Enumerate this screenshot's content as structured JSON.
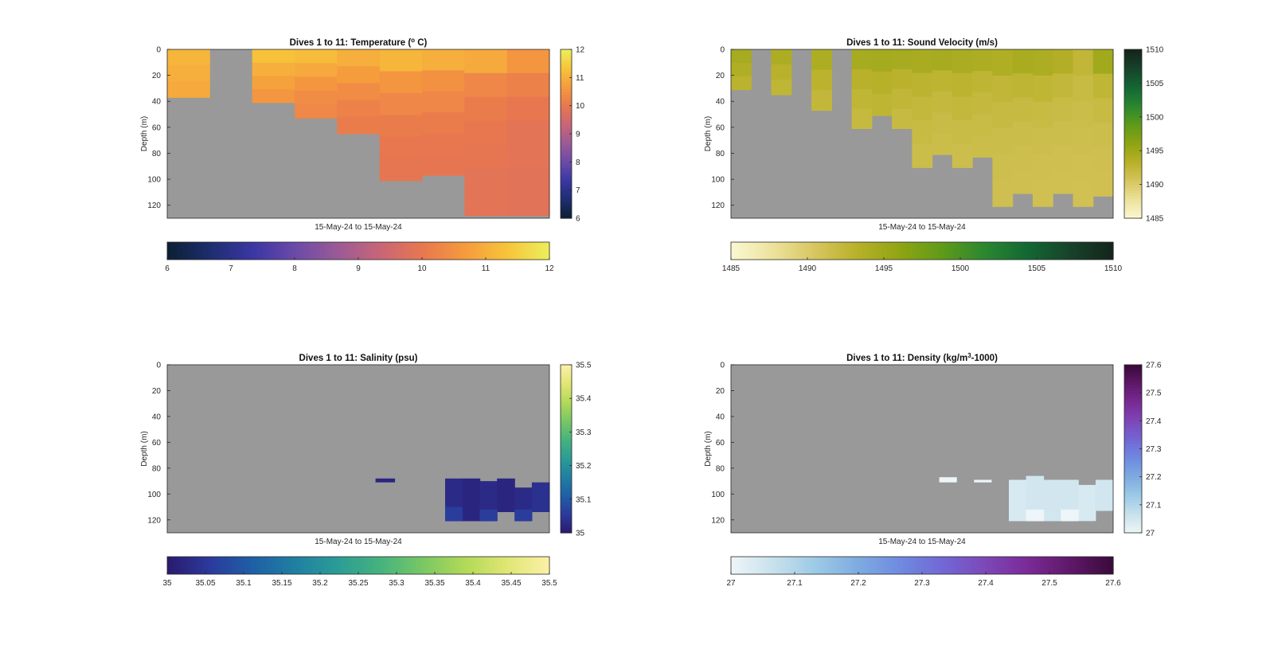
{
  "colors": {
    "background": "#ffffff",
    "no_data": "#999999",
    "axis": "#262626"
  },
  "chart_data": [
    {
      "type": "heatmap",
      "title": "Dives 1 to 11: Temperature (",
      "title_sup": "o",
      "title_end": " C)",
      "xlabel": "15-May-24 to 15-May-24",
      "ylabel": "Depth (m)",
      "ylim": [
        0,
        130
      ],
      "yticks": [
        "0",
        "20",
        "40",
        "60",
        "80",
        "100",
        "120"
      ],
      "colorbar_range": [
        6,
        12
      ],
      "colorbar_ticks": [
        "6",
        "7",
        "8",
        "9",
        "10",
        "11",
        "12"
      ],
      "h_colorbar_ticks": [
        "6",
        "7",
        "8",
        "9",
        "10",
        "11",
        "12"
      ],
      "colormap": [
        "#0b1f33",
        "#1d2d6e",
        "#3a36a3",
        "#6a4aa8",
        "#9a5a96",
        "#c86578",
        "#e8774f",
        "#f59a3d",
        "#f7c43a",
        "#ecef5c"
      ],
      "columns": [
        {
          "depth": 37,
          "values": [
            11.1,
            11.0,
            10.9
          ]
        },
        {
          "depth": 0,
          "values": []
        },
        {
          "depth": 41,
          "values": [
            11.3,
            11.0,
            10.8,
            10.6
          ]
        },
        {
          "depth": 53,
          "values": [
            11.2,
            10.9,
            10.6,
            10.4,
            10.3
          ]
        },
        {
          "depth": 65,
          "values": [
            11.0,
            10.7,
            10.4,
            10.2,
            10.1
          ]
        },
        {
          "depth": 101,
          "values": [
            11.1,
            10.6,
            10.3,
            10.1,
            10.0,
            9.95
          ]
        },
        {
          "depth": 97,
          "values": [
            11.0,
            10.5,
            10.3,
            10.1,
            10.0,
            9.95
          ]
        },
        {
          "depth": 128,
          "values": [
            10.9,
            10.3,
            10.1,
            10.0,
            9.95,
            9.9,
            9.9
          ]
        },
        {
          "depth": 128,
          "values": [
            10.6,
            10.2,
            10.0,
            9.9,
            9.9,
            9.85,
            9.85
          ]
        }
      ]
    },
    {
      "type": "heatmap",
      "title": "Dives 1 to 11: Sound Velocity (m/s)",
      "xlabel": "15-May-24 to 15-May-24",
      "ylabel": "Depth (m)",
      "ylim": [
        0,
        130
      ],
      "yticks": [
        "0",
        "20",
        "40",
        "60",
        "80",
        "100",
        "120"
      ],
      "colorbar_range": [
        1485,
        1510
      ],
      "colorbar_ticks": [
        "1485",
        "1490",
        "1495",
        "1500",
        "1505",
        "1510"
      ],
      "h_colorbar_ticks": [
        "1485",
        "1490",
        "1495",
        "1500",
        "1505",
        "1510"
      ],
      "colormap": [
        "#fbf8d2",
        "#ece29c",
        "#d7c55e",
        "#b7b028",
        "#8ea412",
        "#5e9a1a",
        "#2a8630",
        "#136733",
        "#17422a",
        "#14241a"
      ],
      "columns": [
        {
          "depth": 31,
          "values": [
            1494.5,
            1493.8,
            1493.0
          ]
        },
        {
          "depth": 0,
          "values": []
        },
        {
          "depth": 35,
          "values": [
            1494.0,
            1493.2,
            1492.6
          ]
        },
        {
          "depth": 0,
          "values": []
        },
        {
          "depth": 47,
          "values": [
            1494.0,
            1493.0,
            1492.4
          ]
        },
        {
          "depth": 0,
          "values": []
        },
        {
          "depth": 61,
          "values": [
            1494.4,
            1493.2,
            1492.6,
            1492.1
          ]
        },
        {
          "depth": 51,
          "values": [
            1494.6,
            1493.3,
            1492.7
          ]
        },
        {
          "depth": 61,
          "values": [
            1494.5,
            1493.1,
            1492.5,
            1492.0
          ]
        },
        {
          "depth": 91,
          "values": [
            1494.3,
            1492.9,
            1492.3,
            1491.9,
            1491.6
          ]
        },
        {
          "depth": 81,
          "values": [
            1494.4,
            1492.8,
            1492.2,
            1491.8,
            1491.6
          ]
        },
        {
          "depth": 91,
          "values": [
            1494.2,
            1492.9,
            1492.3,
            1491.8,
            1491.5
          ]
        },
        {
          "depth": 83,
          "values": [
            1494.1,
            1492.7,
            1492.2,
            1491.8,
            1491.6
          ]
        },
        {
          "depth": 121,
          "values": [
            1493.9,
            1492.5,
            1492.0,
            1491.6,
            1491.4,
            1491.3
          ]
        },
        {
          "depth": 111,
          "values": [
            1494.3,
            1492.7,
            1492.0,
            1491.6,
            1491.4,
            1491.3
          ]
        },
        {
          "depth": 121,
          "values": [
            1494.1,
            1492.6,
            1491.9,
            1491.5,
            1491.3,
            1491.2
          ]
        },
        {
          "depth": 111,
          "values": [
            1493.7,
            1492.4,
            1491.8,
            1491.5,
            1491.3,
            1491.2
          ]
        },
        {
          "depth": 121,
          "values": [
            1492.5,
            1491.9,
            1491.6,
            1491.4,
            1491.2,
            1491.1
          ]
        },
        {
          "depth": 113,
          "values": [
            1494.8,
            1492.6,
            1491.9,
            1491.5,
            1491.3,
            1491.2
          ]
        }
      ]
    },
    {
      "type": "heatmap",
      "title": "Dives 1 to 11: Salinity (psu)",
      "xlabel": "15-May-24 to 15-May-24",
      "ylabel": "Depth (m)",
      "ylim": [
        0,
        130
      ],
      "yticks": [
        "0",
        "20",
        "40",
        "60",
        "80",
        "100",
        "120"
      ],
      "colorbar_range": [
        35,
        35.5
      ],
      "colorbar_ticks": [
        "35",
        "35.1",
        "35.2",
        "35.3",
        "35.4",
        "35.5"
      ],
      "h_colorbar_ticks": [
        "35",
        "35.05",
        "35.1",
        "35.15",
        "35.2",
        "35.25",
        "35.3",
        "35.35",
        "35.4",
        "35.45",
        "35.5"
      ],
      "colormap": [
        "#2a1a6e",
        "#2b3a9c",
        "#1f5fa6",
        "#1f7fa2",
        "#2b9c95",
        "#45b27e",
        "#78c765",
        "#b1d957",
        "#e0e672",
        "#fbf0a8"
      ],
      "patches": [
        {
          "x0": 0.545,
          "x1": 0.595,
          "d0": 88,
          "d1": 91,
          "value": 35.02
        },
        {
          "x0": 0.727,
          "x1": 0.772,
          "d0": 88,
          "d1": 121,
          "value": 35.03
        },
        {
          "x0": 0.772,
          "x1": 0.818,
          "d0": 88,
          "d1": 121,
          "value": 35.02
        },
        {
          "x0": 0.818,
          "x1": 0.863,
          "d0": 90,
          "d1": 121,
          "value": 35.03
        },
        {
          "x0": 0.863,
          "x1": 0.909,
          "d0": 88,
          "d1": 114,
          "value": 35.02
        },
        {
          "x0": 0.909,
          "x1": 0.954,
          "d0": 95,
          "d1": 121,
          "value": 35.03
        },
        {
          "x0": 0.954,
          "x1": 1.0,
          "d0": 91,
          "d1": 114,
          "value": 35.04
        }
      ],
      "patch_overrides": [
        {
          "x0": 0.727,
          "x1": 0.772,
          "d0": 110,
          "d1": 121,
          "value": 35.06
        },
        {
          "x0": 0.818,
          "x1": 0.863,
          "d0": 112,
          "d1": 121,
          "value": 35.06
        },
        {
          "x0": 0.909,
          "x1": 0.954,
          "d0": 112,
          "d1": 121,
          "value": 35.06
        }
      ]
    },
    {
      "type": "heatmap",
      "title": "Dives 1 to 11: Density (kg/m",
      "title_sup": "3",
      "title_end": "-1000)",
      "xlabel": "15-May-24 to 15-May-24",
      "ylabel": "Depth (m)",
      "ylim": [
        0,
        130
      ],
      "yticks": [
        "0",
        "20",
        "40",
        "60",
        "80",
        "100",
        "120"
      ],
      "colorbar_range": [
        27,
        27.6
      ],
      "colorbar_ticks": [
        "27",
        "27.1",
        "27.2",
        "27.3",
        "27.4",
        "27.5",
        "27.6"
      ],
      "h_colorbar_ticks": [
        "27",
        "27.1",
        "27.2",
        "27.3",
        "27.4",
        "27.5",
        "27.6"
      ],
      "colormap": [
        "#eef5f8",
        "#c8e1ec",
        "#9ccae6",
        "#7eabe0",
        "#6f8ae0",
        "#7267d4",
        "#7d47b8",
        "#7a2a96",
        "#5e1868",
        "#3a0a3a"
      ],
      "patches": [
        {
          "x0": 0.545,
          "x1": 0.59,
          "d0": 87,
          "d1": 91,
          "value": 27.0
        },
        {
          "x0": 0.636,
          "x1": 0.681,
          "d0": 89,
          "d1": 91,
          "value": 27.0
        },
        {
          "x0": 0.727,
          "x1": 0.772,
          "d0": 89,
          "d1": 121,
          "value": 27.04
        },
        {
          "x0": 0.772,
          "x1": 0.818,
          "d0": 86,
          "d1": 121,
          "value": 27.05
        },
        {
          "x0": 0.818,
          "x1": 0.863,
          "d0": 89,
          "d1": 121,
          "value": 27.05
        },
        {
          "x0": 0.863,
          "x1": 0.909,
          "d0": 89,
          "d1": 121,
          "value": 27.05
        },
        {
          "x0": 0.909,
          "x1": 0.954,
          "d0": 93,
          "d1": 121,
          "value": 27.04
        },
        {
          "x0": 0.954,
          "x1": 1.0,
          "d0": 89,
          "d1": 113,
          "value": 27.05
        }
      ],
      "patch_overrides": [
        {
          "x0": 0.772,
          "x1": 0.818,
          "d0": 112,
          "d1": 121,
          "value": 26.95
        },
        {
          "x0": 0.863,
          "x1": 0.909,
          "d0": 112,
          "d1": 121,
          "value": 26.95
        }
      ]
    }
  ]
}
